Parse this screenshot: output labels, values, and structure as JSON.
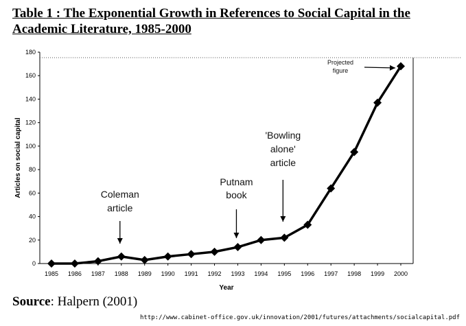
{
  "title": "Table 1 : The Exponential Growth in References to Social Capital in the Academic Literature, 1985-2000",
  "source_label": "Source",
  "source_text": ": Halpern (2001)",
  "url": "http://www.cabinet-office.gov.uk/innovation/2001/futures/attachments/socialcapital.pdf",
  "chart_data": {
    "type": "line",
    "xlabel": "Year",
    "ylabel": "Articles on social capital",
    "categories": [
      "1985",
      "1986",
      "1987",
      "1988",
      "1989",
      "1990",
      "1991",
      "1992",
      "1993",
      "1994",
      "1995",
      "1996",
      "1997",
      "1998",
      "1999",
      "2000"
    ],
    "values": [
      0,
      0,
      2,
      6,
      3,
      6,
      8,
      10,
      14,
      20,
      22,
      33,
      64,
      95,
      137,
      168
    ],
    "ylim": [
      0,
      180
    ],
    "yticks": [
      0,
      20,
      40,
      60,
      80,
      100,
      120,
      140,
      160,
      180
    ],
    "grid": false,
    "marker": "diamond",
    "line_color": "#000000",
    "annotations": [
      {
        "lines": [
          "Coleman",
          "article"
        ],
        "year": "1988"
      },
      {
        "lines": [
          "Putnam",
          "book"
        ],
        "year": "1993"
      },
      {
        "lines": [
          "'Bowling",
          "alone'",
          "article"
        ],
        "year": "1995"
      },
      {
        "lines": [
          "Projected",
          "figure"
        ],
        "year": "2000"
      }
    ]
  }
}
